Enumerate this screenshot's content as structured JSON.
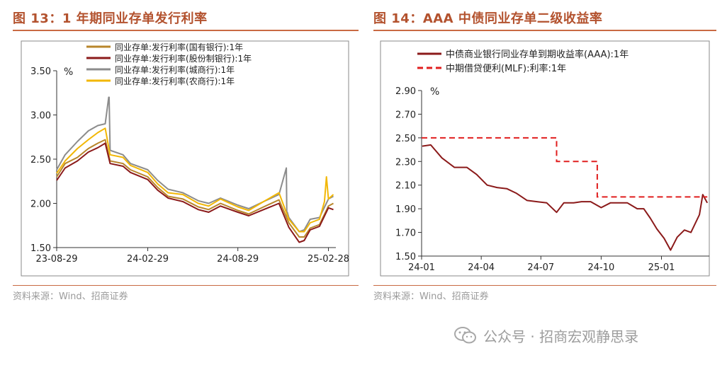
{
  "figures": [
    {
      "title": "图 13：1 年期同业存单发行利率",
      "source": "资料来源：Wind、招商证券"
    },
    {
      "title": "图 14：AAA 中债同业存单二级收益率",
      "source": "资料来源：Wind、招商证券"
    }
  ],
  "watermark": {
    "text": "公众号 · 招商宏观静思录",
    "icon": "wechat-icon"
  },
  "chart_data": [
    {
      "type": "line",
      "unit_label": "%",
      "ylim": [
        1.5,
        3.5
      ],
      "yticks": [
        "1.50",
        "2.00",
        "2.50",
        "3.00",
        "3.50"
      ],
      "xlim": [
        "2023-08-29",
        "2025-03-15"
      ],
      "xticks": [
        {
          "date": "2023-08-29",
          "label": "23-08-29"
        },
        {
          "date": "2024-02-29",
          "label": "24-02-29"
        },
        {
          "date": "2024-08-29",
          "label": "24-08-29"
        },
        {
          "date": "2025-02-28",
          "label": "25-02-28"
        }
      ],
      "legend_position": "top-left",
      "grid": false,
      "series": [
        {
          "name": "同业存单:发行利率(国有银行):1年",
          "color": "#b8862b",
          "x": [
            "2023-08-29",
            "2023-09-15",
            "2023-10-10",
            "2023-11-01",
            "2023-11-20",
            "2023-12-05",
            "2023-12-15",
            "2024-01-10",
            "2024-01-25",
            "2024-02-29",
            "2024-03-20",
            "2024-04-10",
            "2024-05-10",
            "2024-06-10",
            "2024-07-01",
            "2024-07-25",
            "2024-08-29",
            "2024-09-20",
            "2024-10-20",
            "2024-11-20",
            "2024-12-10",
            "2024-12-31",
            "2025-01-10",
            "2025-01-22",
            "2025-02-10",
            "2025-02-28",
            "2025-03-10"
          ],
          "y": [
            2.3,
            2.45,
            2.52,
            2.62,
            2.68,
            2.72,
            2.48,
            2.45,
            2.38,
            2.3,
            2.18,
            2.08,
            2.05,
            1.96,
            1.93,
            2.0,
            1.92,
            1.88,
            1.96,
            2.04,
            1.78,
            1.62,
            1.62,
            1.72,
            1.76,
            1.97,
            2.0
          ]
        },
        {
          "name": "同业存单:发行利率(股份制银行):1年",
          "color": "#8b1a1a",
          "x": [
            "2023-08-29",
            "2023-09-15",
            "2023-10-10",
            "2023-11-01",
            "2023-11-20",
            "2023-12-05",
            "2023-12-15",
            "2024-01-10",
            "2024-01-25",
            "2024-02-29",
            "2024-03-20",
            "2024-04-10",
            "2024-05-10",
            "2024-06-10",
            "2024-07-01",
            "2024-07-25",
            "2024-08-29",
            "2024-09-20",
            "2024-10-20",
            "2024-11-20",
            "2024-12-10",
            "2024-12-31",
            "2025-01-10",
            "2025-01-22",
            "2025-02-10",
            "2025-02-28",
            "2025-03-10"
          ],
          "y": [
            2.26,
            2.4,
            2.48,
            2.58,
            2.63,
            2.68,
            2.45,
            2.42,
            2.35,
            2.27,
            2.15,
            2.06,
            2.02,
            1.93,
            1.9,
            1.97,
            1.9,
            1.86,
            1.93,
            2.0,
            1.73,
            1.56,
            1.58,
            1.7,
            1.74,
            1.95,
            1.93
          ]
        },
        {
          "name": "同业存单:发行利率(城商行):1年",
          "color": "#8c8c8c",
          "x": [
            "2023-08-29",
            "2023-09-15",
            "2023-10-10",
            "2023-11-01",
            "2023-11-20",
            "2023-12-05",
            "2023-12-12",
            "2023-12-13",
            "2023-12-15",
            "2024-01-10",
            "2024-01-25",
            "2024-02-29",
            "2024-03-20",
            "2024-04-10",
            "2024-05-10",
            "2024-06-10",
            "2024-07-01",
            "2024-07-25",
            "2024-08-29",
            "2024-09-20",
            "2024-10-20",
            "2024-11-20",
            "2024-12-05",
            "2024-12-06",
            "2024-12-07",
            "2024-12-10",
            "2024-12-31",
            "2025-01-10",
            "2025-01-22",
            "2025-02-10",
            "2025-02-28",
            "2025-03-10"
          ],
          "y": [
            2.38,
            2.55,
            2.7,
            2.82,
            2.88,
            2.9,
            3.2,
            3.2,
            2.6,
            2.55,
            2.45,
            2.38,
            2.26,
            2.16,
            2.12,
            2.03,
            2.0,
            2.06,
            1.98,
            1.94,
            2.02,
            2.1,
            2.4,
            1.85,
            1.9,
            1.84,
            1.68,
            1.7,
            1.82,
            1.84,
            2.05,
            2.08
          ]
        },
        {
          "name": "同业存单:发行利率(农商行):1年",
          "color": "#f2b705",
          "x": [
            "2023-08-29",
            "2023-09-15",
            "2023-10-10",
            "2023-11-01",
            "2023-11-20",
            "2023-12-05",
            "2023-12-15",
            "2024-01-10",
            "2024-01-25",
            "2024-02-29",
            "2024-03-20",
            "2024-04-10",
            "2024-05-10",
            "2024-06-10",
            "2024-07-01",
            "2024-07-25",
            "2024-08-29",
            "2024-09-20",
            "2024-10-20",
            "2024-11-20",
            "2024-12-10",
            "2024-12-31",
            "2025-01-10",
            "2025-01-22",
            "2025-02-10",
            "2025-02-20",
            "2025-02-24",
            "2025-02-28",
            "2025-03-10"
          ],
          "y": [
            2.34,
            2.48,
            2.62,
            2.72,
            2.8,
            2.85,
            2.55,
            2.52,
            2.43,
            2.35,
            2.22,
            2.12,
            2.1,
            2.0,
            1.97,
            2.05,
            1.96,
            1.92,
            2.02,
            2.12,
            1.82,
            1.68,
            1.68,
            1.78,
            1.82,
            2.02,
            2.3,
            2.05,
            2.1
          ]
        }
      ]
    },
    {
      "type": "line",
      "unit_label": "%",
      "ylim": [
        1.5,
        2.9
      ],
      "yticks": [
        "1.50",
        "1.70",
        "1.90",
        "2.10",
        "2.30",
        "2.50",
        "2.70",
        "2.90"
      ],
      "xlim": [
        "2024-01-01",
        "2025-03-15"
      ],
      "xticks": [
        {
          "date": "2024-01-01",
          "label": "24-01"
        },
        {
          "date": "2024-04-01",
          "label": "24-04"
        },
        {
          "date": "2024-07-01",
          "label": "24-07"
        },
        {
          "date": "2024-10-01",
          "label": "24-10"
        },
        {
          "date": "2025-01-01",
          "label": "25-01"
        }
      ],
      "legend_position": "top-left",
      "grid": false,
      "series": [
        {
          "name": "中债商业银行同业存单到期收益率(AAA):1年",
          "color": "#8b1a1a",
          "style": "solid",
          "x": [
            "2024-01-02",
            "2024-01-15",
            "2024-02-01",
            "2024-02-20",
            "2024-03-10",
            "2024-03-25",
            "2024-04-10",
            "2024-04-25",
            "2024-05-10",
            "2024-05-25",
            "2024-06-10",
            "2024-06-25",
            "2024-07-10",
            "2024-07-25",
            "2024-08-05",
            "2024-08-20",
            "2024-09-01",
            "2024-09-15",
            "2024-10-01",
            "2024-10-15",
            "2024-10-30",
            "2024-11-10",
            "2024-11-25",
            "2024-12-05",
            "2024-12-15",
            "2024-12-25",
            "2025-01-05",
            "2025-01-15",
            "2025-01-25",
            "2025-02-05",
            "2025-02-15",
            "2025-02-28",
            "2025-03-05",
            "2025-03-12"
          ],
          "y": [
            2.43,
            2.44,
            2.33,
            2.25,
            2.25,
            2.19,
            2.1,
            2.08,
            2.07,
            2.03,
            1.97,
            1.96,
            1.95,
            1.87,
            1.95,
            1.95,
            1.96,
            1.96,
            1.91,
            1.95,
            1.95,
            1.95,
            1.9,
            1.9,
            1.82,
            1.73,
            1.65,
            1.55,
            1.66,
            1.72,
            1.7,
            1.85,
            2.02,
            1.95
          ]
        },
        {
          "name": "中期借贷便利(MLF):利率:1年",
          "color": "#e01e1e",
          "style": "dashed",
          "x": [
            "2024-01-01",
            "2024-07-25",
            "2024-07-25",
            "2024-09-25",
            "2024-09-25",
            "2025-03-12"
          ],
          "y": [
            2.5,
            2.5,
            2.3,
            2.3,
            2.0,
            2.0
          ]
        }
      ]
    }
  ]
}
